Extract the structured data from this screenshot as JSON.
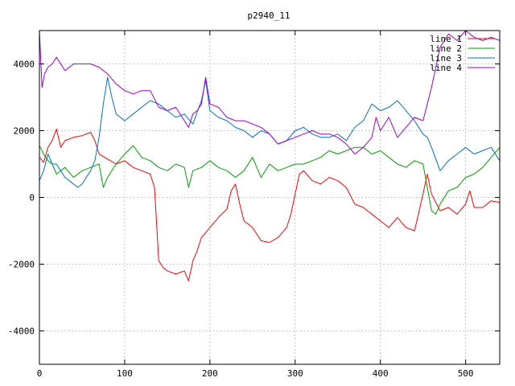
{
  "chart_data": {
    "type": "line",
    "title": "p2940_11",
    "xlabel": "",
    "ylabel": "",
    "xlim": [
      0,
      540
    ],
    "ylim": [
      -5000,
      5000
    ],
    "x_ticks": [
      0,
      100,
      200,
      300,
      400,
      500
    ],
    "y_ticks": [
      -4000,
      -2000,
      0,
      2000,
      4000
    ],
    "grid": true,
    "legend_position": "top-right",
    "series": [
      {
        "name": "line 1",
        "color": "#ff0000",
        "x": [
          0,
          5,
          10,
          15,
          20,
          25,
          30,
          40,
          50,
          60,
          65,
          70,
          80,
          90,
          100,
          110,
          120,
          130,
          135,
          140,
          145,
          150,
          160,
          170,
          175,
          180,
          185,
          190,
          200,
          210,
          220,
          225,
          230,
          235,
          240,
          250,
          260,
          270,
          280,
          290,
          295,
          300,
          305,
          310,
          320,
          330,
          340,
          350,
          360,
          370,
          380,
          390,
          400,
          410,
          420,
          430,
          440,
          450,
          455,
          460,
          470,
          480,
          490,
          500,
          505,
          510,
          520,
          530,
          540
        ],
        "y": [
          1200,
          1050,
          1500,
          1700,
          2050,
          1500,
          1700,
          1800,
          1850,
          1950,
          1700,
          1300,
          1150,
          1000,
          1100,
          900,
          800,
          700,
          300,
          -1900,
          -2100,
          -2200,
          -2300,
          -2200,
          -2500,
          -1900,
          -1600,
          -1200,
          -900,
          -600,
          -350,
          200,
          400,
          -200,
          -700,
          -900,
          -1300,
          -1350,
          -1200,
          -900,
          -500,
          100,
          700,
          800,
          500,
          400,
          600,
          500,
          300,
          -200,
          -300,
          -500,
          -700,
          -900,
          -600,
          -900,
          -1000,
          100,
          700,
          100,
          -400,
          -300,
          -500,
          -200,
          200,
          -300,
          -300,
          -100,
          -150
        ]
      },
      {
        "name": "line 2",
        "color": "#00a000",
        "x": [
          0,
          5,
          10,
          15,
          20,
          30,
          40,
          50,
          60,
          70,
          75,
          80,
          90,
          100,
          110,
          120,
          130,
          140,
          150,
          160,
          170,
          175,
          180,
          190,
          200,
          210,
          220,
          230,
          240,
          250,
          260,
          270,
          280,
          290,
          300,
          310,
          320,
          330,
          340,
          350,
          360,
          370,
          380,
          390,
          400,
          410,
          420,
          430,
          440,
          450,
          460,
          465,
          470,
          480,
          490,
          500,
          510,
          520,
          530,
          540
        ],
        "y": [
          1550,
          1300,
          1100,
          1000,
          700,
          900,
          600,
          800,
          900,
          1000,
          300,
          600,
          1000,
          1300,
          1550,
          1200,
          1100,
          900,
          800,
          1000,
          900,
          300,
          800,
          900,
          1100,
          900,
          800,
          600,
          800,
          1200,
          600,
          1000,
          800,
          900,
          1000,
          1000,
          1100,
          1200,
          1400,
          1300,
          1400,
          1500,
          1500,
          1300,
          1400,
          1200,
          1000,
          900,
          1100,
          1000,
          -400,
          -500,
          -200,
          200,
          300,
          600,
          700,
          900,
          1200,
          1500
        ]
      },
      {
        "name": "line 3",
        "color": "#0070d0",
        "x": [
          0,
          5,
          10,
          15,
          20,
          25,
          30,
          35,
          40,
          45,
          50,
          60,
          65,
          70,
          75,
          80,
          85,
          90,
          95,
          100,
          110,
          120,
          130,
          140,
          150,
          160,
          170,
          180,
          190,
          195,
          200,
          210,
          220,
          230,
          240,
          250,
          260,
          270,
          280,
          290,
          300,
          310,
          320,
          330,
          340,
          350,
          360,
          370,
          380,
          390,
          400,
          410,
          420,
          430,
          440,
          450,
          455,
          460,
          470,
          480,
          490,
          500,
          510,
          520,
          530,
          540
        ],
        "y": [
          500,
          800,
          1300,
          1000,
          1000,
          800,
          600,
          500,
          400,
          300,
          400,
          800,
          1100,
          1800,
          2800,
          3600,
          3000,
          2500,
          2400,
          2300,
          2500,
          2700,
          2900,
          2800,
          2600,
          2400,
          2500,
          2200,
          2900,
          3500,
          2600,
          2400,
          2300,
          2100,
          2000,
          1800,
          2000,
          1900,
          1600,
          1700,
          2000,
          2100,
          1900,
          1800,
          1800,
          1900,
          1700,
          2100,
          2300,
          2800,
          2600,
          2700,
          2900,
          2600,
          2300,
          1900,
          1800,
          1500,
          800,
          1100,
          1300,
          1500,
          1300,
          1400,
          1500,
          1100
        ]
      },
      {
        "name": "line 4",
        "color": "#a000d0",
        "x": [
          0,
          3,
          6,
          10,
          15,
          20,
          30,
          40,
          50,
          60,
          70,
          75,
          80,
          90,
          100,
          110,
          120,
          130,
          140,
          150,
          160,
          170,
          175,
          180,
          185,
          190,
          195,
          200,
          210,
          220,
          230,
          240,
          250,
          260,
          270,
          280,
          290,
          300,
          310,
          320,
          330,
          340,
          350,
          360,
          370,
          380,
          390,
          395,
          400,
          410,
          420,
          430,
          440,
          450,
          460,
          470,
          480,
          490,
          500,
          510,
          520,
          530,
          540
        ],
        "y": [
          5000,
          3300,
          3700,
          3900,
          4000,
          4200,
          3800,
          4000,
          4000,
          4000,
          3900,
          3800,
          3700,
          3400,
          3200,
          3100,
          3200,
          3200,
          2700,
          2600,
          2700,
          2300,
          2100,
          2500,
          2600,
          2800,
          3600,
          2800,
          2700,
          2400,
          2300,
          2300,
          2200,
          2100,
          1900,
          1600,
          1700,
          1800,
          1900,
          2000,
          1900,
          1900,
          1800,
          1600,
          1300,
          1500,
          1800,
          2400,
          2000,
          2400,
          1800,
          2100,
          2400,
          2300,
          3300,
          4500,
          4900,
          4700,
          5000,
          4800,
          4700,
          4800,
          4700
        ]
      }
    ]
  }
}
